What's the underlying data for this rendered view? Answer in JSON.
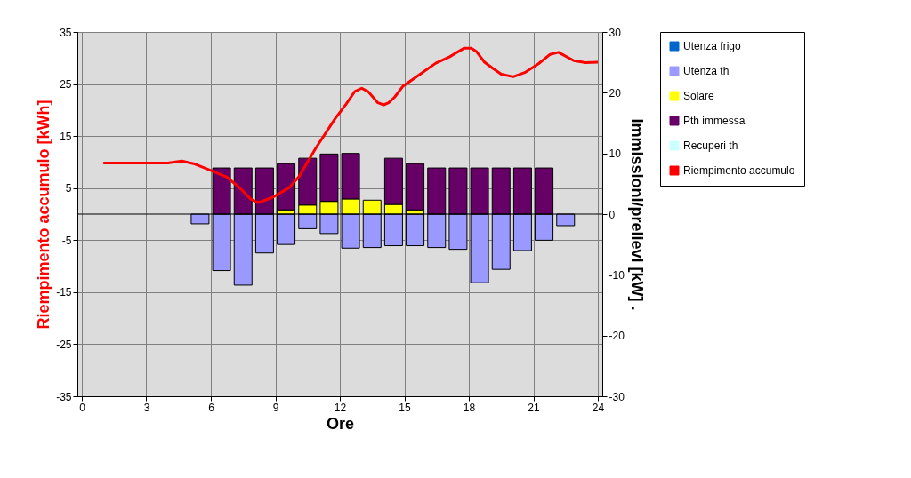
{
  "chart_data": {
    "type": "bar",
    "xlabel": "Ore",
    "ylabel": "Riempimento accumulo [kWh]",
    "y2label": "Immissioni/prelievi [kW] .",
    "x": [
      5.5,
      6.5,
      7.5,
      8.5,
      9.5,
      10.5,
      11.5,
      12.5,
      13.5,
      14.5,
      15.5,
      16.5,
      17.5,
      18.5,
      19.5,
      20.5,
      21.5,
      22.5
    ],
    "stacked": true,
    "series": [
      {
        "name": "Utenza frigo",
        "color": "#0066cc",
        "values": [
          null,
          null,
          null,
          null,
          null,
          null,
          null,
          null,
          null,
          null,
          null,
          null,
          null,
          null,
          null,
          null,
          null,
          null
        ]
      },
      {
        "name": "Utenza th",
        "color": "#9999ff",
        "axis": "y2",
        "values": [
          -1.6,
          -9.3,
          -11.7,
          -6.4,
          -5.0,
          -2.4,
          -3.2,
          -5.6,
          -5.5,
          -5.2,
          -5.2,
          -5.5,
          -5.8,
          -11.3,
          -9.1,
          -6.0,
          -4.3,
          -1.9
        ]
      },
      {
        "name": "Solare",
        "color": "#ffff00",
        "axis": "y2",
        "values": [
          null,
          null,
          null,
          null,
          0.7,
          1.5,
          2.1,
          2.5,
          2.3,
          1.6,
          0.7,
          null,
          null,
          null,
          null,
          null,
          null,
          null
        ]
      },
      {
        "name": "Pth immessa",
        "color": "#660066",
        "axis": "y2",
        "values": [
          null,
          7.6,
          7.6,
          7.6,
          7.6,
          7.7,
          7.8,
          7.5,
          null,
          7.6,
          7.6,
          7.6,
          7.6,
          7.6,
          7.6,
          7.6,
          7.6,
          null
        ]
      },
      {
        "name": "Recuperi th",
        "color": "#ccffff",
        "values": [
          null,
          null,
          null,
          null,
          null,
          null,
          null,
          null,
          null,
          null,
          null,
          null,
          null,
          null,
          null,
          null,
          null,
          null
        ]
      },
      {
        "name": "Riempimento accumulo",
        "type": "line",
        "color": "#ff0000",
        "x": [
          1.0,
          4.0,
          4.65,
          5.2,
          6.05,
          6.75,
          7.3,
          7.85,
          8.2,
          8.87,
          9.65,
          10.1,
          10.9,
          11.77,
          12.3,
          12.7,
          13.02,
          13.33,
          13.77,
          14.04,
          14.27,
          14.55,
          14.94,
          15.6,
          16.46,
          17.09,
          17.79,
          18.1,
          18.34,
          18.73,
          19.12,
          19.51,
          20.06,
          20.6,
          21.24,
          21.78,
          22.17,
          22.88,
          23.43,
          24.0
        ],
        "values": [
          9.8,
          9.8,
          10.2,
          9.7,
          8.3,
          7.1,
          5.2,
          2.9,
          2.2,
          3.2,
          5.1,
          7.2,
          12.8,
          18.3,
          21.2,
          23.6,
          24.2,
          23.5,
          21.4,
          21.0,
          21.4,
          22.5,
          24.6,
          26.5,
          29.0,
          30.2,
          31.9,
          31.9,
          31.3,
          29.2,
          28.0,
          26.9,
          26.4,
          27.2,
          28.9,
          30.7,
          31.1,
          29.5,
          29.1,
          29.2
        ]
      }
    ],
    "xlim": [
      0,
      24
    ],
    "xticks": [
      0,
      3,
      6,
      9,
      12,
      15,
      18,
      21,
      24
    ],
    "ylim": [
      -35,
      35
    ],
    "yticks": [
      -35,
      -25,
      -15,
      -5,
      5,
      15,
      25,
      35
    ],
    "y2lim": [
      -30,
      30
    ],
    "y2ticks": [
      -30,
      -20,
      -10,
      0,
      10,
      20,
      30
    ],
    "ref_lines": [
      {
        "axis": "y2",
        "value": 0,
        "color": "#000000"
      }
    ],
    "grid": true,
    "legend": "right",
    "line_style": "solid",
    "marker": "none"
  }
}
